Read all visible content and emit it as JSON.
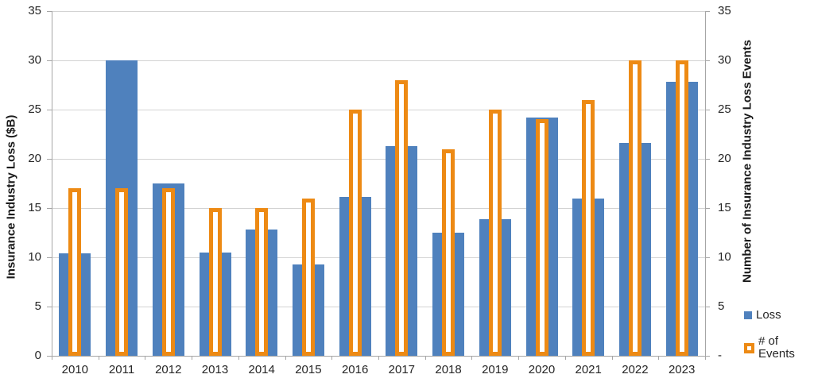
{
  "chart_data": {
    "type": "bar",
    "title": "",
    "categories": [
      "2010",
      "2011",
      "2012",
      "2013",
      "2014",
      "2015",
      "2016",
      "2017",
      "2018",
      "2019",
      "2020",
      "2021",
      "2022",
      "2023"
    ],
    "series": [
      {
        "name": "Loss",
        "axis": "left",
        "style": "filled",
        "color": "#4f81bd",
        "values": [
          10.4,
          30,
          17.5,
          10.5,
          12.8,
          9.3,
          16.1,
          21.3,
          12.5,
          13.9,
          24.2,
          16,
          21.6,
          27.8
        ]
      },
      {
        "name": "# of Events",
        "axis": "right",
        "style": "outline",
        "color": "#ed8a14",
        "values": [
          17,
          17,
          17,
          15,
          15,
          16,
          25,
          28,
          21,
          25,
          24,
          26,
          30,
          30
        ]
      }
    ],
    "left_axis": {
      "title": "Insurance Industry Loss ($B)",
      "min": 0,
      "max": 35,
      "step": 5,
      "tick_labels": [
        "35",
        "30",
        "25",
        "20",
        "15",
        "10",
        "5",
        "0"
      ]
    },
    "right_axis": {
      "title": "Number of Insurance Industry Loss Events",
      "min": 0,
      "max": 35,
      "step": 5,
      "tick_labels": [
        "35",
        "30",
        "25",
        "20",
        "15",
        "10",
        "5",
        "-"
      ]
    },
    "grid": true,
    "legend_position": "right-bottom",
    "legend": [
      "Loss",
      "# of Events"
    ]
  },
  "colors": {
    "loss_bar": "#4f81bd",
    "events_outline": "#ed8a14",
    "gridline": "#d3d3d3",
    "axis_line": "#a6a6a6",
    "text": "#262626"
  }
}
